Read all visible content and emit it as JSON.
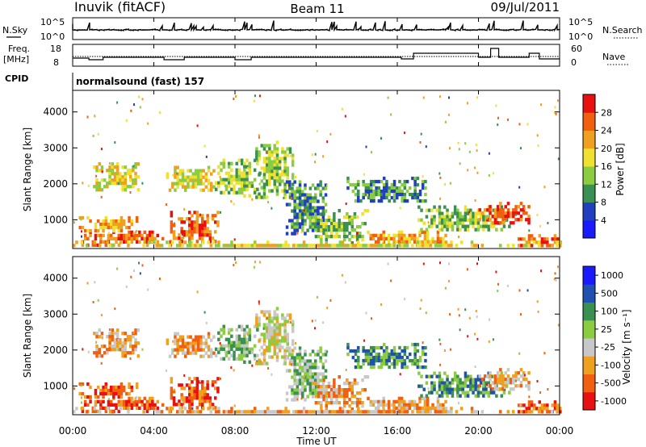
{
  "header": {
    "station": "Inuvik (fitACF)",
    "beam": "Beam 11",
    "date": "09/Jul/2011"
  },
  "cpid_label": "CPID",
  "cpid_text": "normalsound (fast) 157",
  "nsky_panel": {
    "left_label": "N.Sky",
    "right_label": "N.Search",
    "left_ticks": [
      "10^5",
      "10^0"
    ],
    "right_ticks": [
      "10^5",
      "10^0"
    ]
  },
  "freq_panel": {
    "left_label_line1": "Freq.",
    "left_label_line2": "[MHz]",
    "right_label": "Nave",
    "left_ticks": [
      "18",
      "8"
    ],
    "right_ticks": [
      "60",
      "0"
    ]
  },
  "time_axis": {
    "label": "Time UT",
    "ticks": [
      "00:00",
      "04:00",
      "08:00",
      "12:00",
      "16:00",
      "20:00",
      "00:00"
    ]
  },
  "colors": {
    "power": [
      "#1a1aff",
      "#2040c0",
      "#3a9050",
      "#8ccc40",
      "#f0e030",
      "#f0a020",
      "#f06010",
      "#e81010"
    ],
    "velocity": [
      "#e81010",
      "#f06010",
      "#f0a020",
      "#c8c8c8",
      "#8ccc40",
      "#3a9050",
      "#2050b0",
      "#1a1aff"
    ]
  },
  "chart_data": [
    {
      "type": "heatmap",
      "name": "power",
      "ylabel": "Slant Range [km]",
      "yticks": [
        "1000",
        "2000",
        "3000",
        "4000"
      ],
      "ylim": [
        200,
        4600
      ],
      "xlim": [
        "00:00",
        "24:00"
      ],
      "colorbar_label": "Power [dB]",
      "colorbar_ticks": [
        "4",
        "8",
        "12",
        "16",
        "20",
        "24",
        "28"
      ],
      "colorbar_range": [
        0,
        32
      ]
    },
    {
      "type": "heatmap",
      "name": "velocity",
      "ylabel": "Slant Range [km]",
      "yticks": [
        "1000",
        "2000",
        "3000",
        "4000"
      ],
      "ylim": [
        200,
        4600
      ],
      "xlim": [
        "00:00",
        "24:00"
      ],
      "colorbar_label": "Velocity [m s⁻¹]",
      "colorbar_ticks": [
        "1000",
        "500",
        "100",
        "25",
        "-25",
        "-100",
        "-500",
        "-1000"
      ]
    }
  ]
}
